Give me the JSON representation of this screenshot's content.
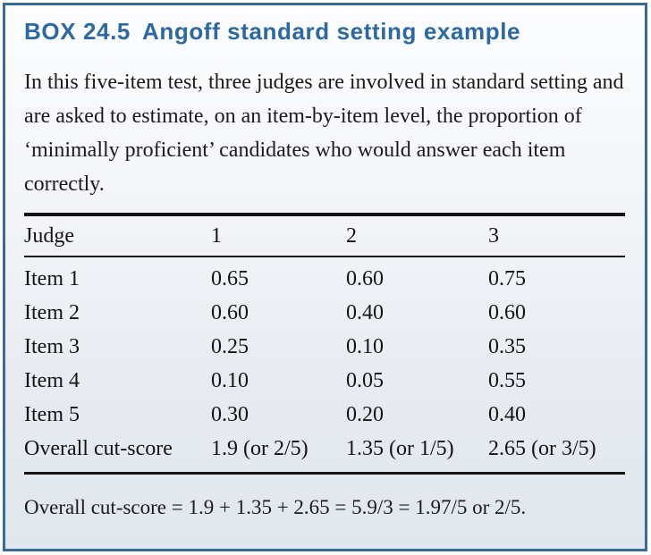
{
  "box": {
    "heading": {
      "label": "BOX 24.5",
      "title": "Angoff standard setting example"
    },
    "intro": "In this five-item test, three judges are involved in standard setting and are asked to estimate, on an item-by-item level, the proportion of ‘minimally proficient’ candidates who would answer each item correctly.",
    "table": {
      "columns": [
        "Judge",
        "1",
        "2",
        "3"
      ],
      "rows": [
        {
          "label": "Item 1",
          "j1": "0.65",
          "j2": "0.60",
          "j3": "0.75"
        },
        {
          "label": "Item 2",
          "j1": "0.60",
          "j2": "0.40",
          "j3": "0.60"
        },
        {
          "label": "Item 3",
          "j1": "0.25",
          "j2": "0.10",
          "j3": "0.35"
        },
        {
          "label": "Item 4",
          "j1": "0.10",
          "j2": "0.05",
          "j3": "0.55"
        },
        {
          "label": "Item 5",
          "j1": "0.30",
          "j2": "0.20",
          "j3": "0.40"
        },
        {
          "label": "Overall cut-score",
          "j1": "1.9 (or 2/5)",
          "j2": "1.35 (or 1/5)",
          "j3": "2.65 (or 3/5)"
        }
      ]
    },
    "footnote": "Overall cut-score = 1.9 + 1.35 + 2.65 = 5.9/3 = 1.97/5 or 2/5.",
    "colors": {
      "accent_heading": "#2e68a0",
      "border": "#3a6a9c",
      "rule": "#141414",
      "background_top": "#fcfdfe",
      "background_bottom": "#e1e7ee",
      "text": "#1b1b1b"
    }
  }
}
